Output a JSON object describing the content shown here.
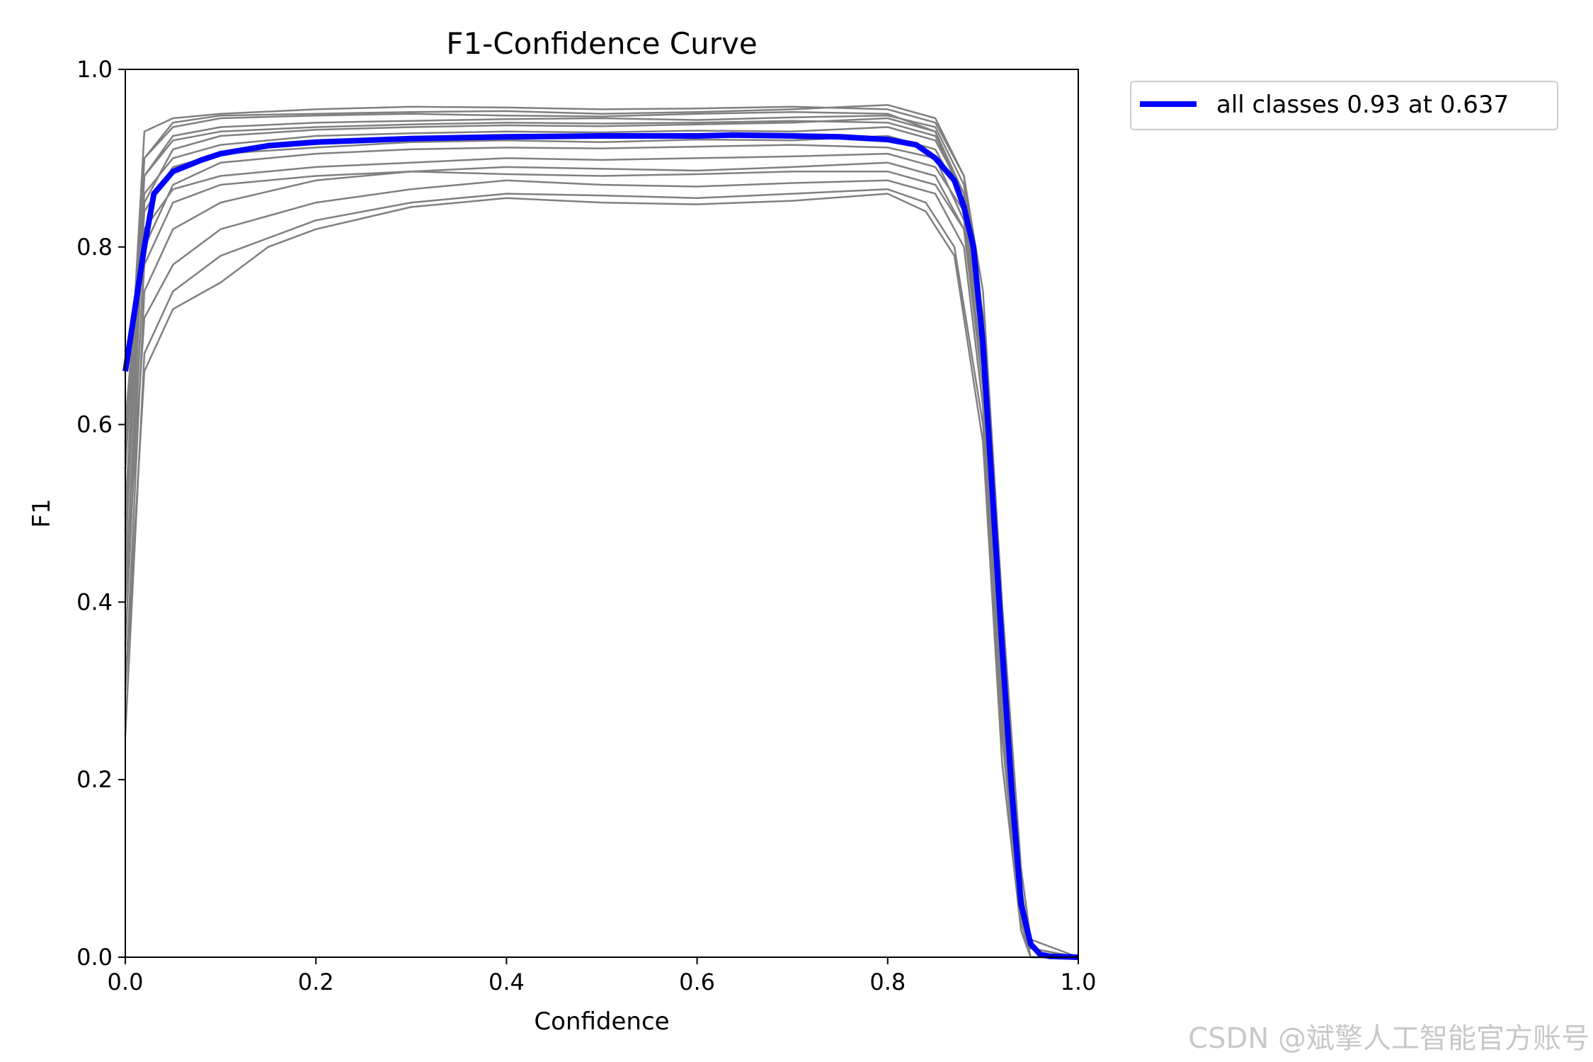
{
  "chart_data": {
    "type": "line",
    "title": "F1-Confidence Curve",
    "xlabel": "Confidence",
    "ylabel": "F1",
    "xlim": [
      0.0,
      1.0
    ],
    "ylim": [
      0.0,
      1.0
    ],
    "xticks": [
      "0.0",
      "0.2",
      "0.4",
      "0.6",
      "0.8",
      "1.0"
    ],
    "yticks": [
      "0.0",
      "0.2",
      "0.4",
      "0.6",
      "0.8",
      "1.0"
    ],
    "grid": false,
    "legend_position": "outside-top-right",
    "legend": [
      "all classes 0.93 at 0.637"
    ],
    "colors": {
      "class_curves": "#808080",
      "all_classes": "#0000ff",
      "axes": "#000000"
    },
    "series": [
      {
        "name": "all classes 0.93 at 0.637",
        "x": [
          0.0,
          0.01,
          0.02,
          0.03,
          0.05,
          0.08,
          0.1,
          0.15,
          0.2,
          0.3,
          0.4,
          0.5,
          0.6,
          0.637,
          0.7,
          0.75,
          0.8,
          0.83,
          0.85,
          0.87,
          0.88,
          0.89,
          0.9,
          0.91,
          0.92,
          0.93,
          0.94,
          0.95,
          0.96,
          0.97,
          1.0
        ],
        "y": [
          0.66,
          0.73,
          0.8,
          0.86,
          0.885,
          0.898,
          0.905,
          0.914,
          0.918,
          0.922,
          0.924,
          0.925,
          0.925,
          0.926,
          0.925,
          0.924,
          0.921,
          0.915,
          0.9,
          0.875,
          0.845,
          0.8,
          0.69,
          0.52,
          0.35,
          0.19,
          0.06,
          0.015,
          0.003,
          0.001,
          0.0
        ]
      }
    ],
    "class_series": [
      {
        "x": [
          0.0,
          0.02,
          0.05,
          0.1,
          0.2,
          0.3,
          0.4,
          0.5,
          0.6,
          0.7,
          0.8,
          0.85,
          0.88,
          0.9,
          0.92,
          0.94,
          0.95,
          1.0
        ],
        "y": [
          0.55,
          0.93,
          0.945,
          0.95,
          0.955,
          0.958,
          0.957,
          0.955,
          0.956,
          0.958,
          0.955,
          0.94,
          0.88,
          0.75,
          0.4,
          0.1,
          0.02,
          0.0
        ]
      },
      {
        "x": [
          0.0,
          0.02,
          0.05,
          0.1,
          0.2,
          0.3,
          0.4,
          0.5,
          0.6,
          0.7,
          0.8,
          0.85,
          0.88,
          0.9,
          0.92,
          0.94,
          0.95,
          1.0
        ],
        "y": [
          0.5,
          0.9,
          0.935,
          0.945,
          0.948,
          0.95,
          0.948,
          0.947,
          0.95,
          0.952,
          0.95,
          0.93,
          0.86,
          0.7,
          0.35,
          0.08,
          0.01,
          0.0
        ]
      },
      {
        "x": [
          0.0,
          0.02,
          0.05,
          0.1,
          0.2,
          0.3,
          0.4,
          0.5,
          0.6,
          0.7,
          0.8,
          0.85,
          0.88,
          0.9,
          0.92,
          0.94,
          0.95,
          1.0
        ],
        "y": [
          0.45,
          0.88,
          0.925,
          0.935,
          0.94,
          0.942,
          0.944,
          0.945,
          0.943,
          0.946,
          0.948,
          0.935,
          0.87,
          0.72,
          0.38,
          0.07,
          0.01,
          0.0
        ]
      },
      {
        "x": [
          0.0,
          0.02,
          0.05,
          0.1,
          0.2,
          0.3,
          0.4,
          0.5,
          0.6,
          0.7,
          0.8,
          0.85,
          0.88,
          0.9,
          0.92,
          0.94,
          0.95,
          1.0
        ],
        "y": [
          0.4,
          0.85,
          0.91,
          0.925,
          0.932,
          0.935,
          0.937,
          0.936,
          0.938,
          0.94,
          0.945,
          0.93,
          0.85,
          0.68,
          0.3,
          0.05,
          0.0,
          0.0
        ]
      },
      {
        "x": [
          0.0,
          0.02,
          0.05,
          0.1,
          0.2,
          0.3,
          0.4,
          0.5,
          0.6,
          0.7,
          0.8,
          0.85,
          0.88,
          0.9,
          0.92,
          0.94,
          0.95,
          1.0
        ],
        "y": [
          0.6,
          0.86,
          0.9,
          0.915,
          0.925,
          0.928,
          0.93,
          0.929,
          0.931,
          0.93,
          0.935,
          0.92,
          0.86,
          0.7,
          0.33,
          0.06,
          0.01,
          0.0
        ]
      },
      {
        "x": [
          0.0,
          0.02,
          0.05,
          0.1,
          0.2,
          0.3,
          0.4,
          0.5,
          0.6,
          0.7,
          0.8,
          0.85,
          0.88,
          0.9,
          0.92,
          0.94,
          0.95,
          1.0
        ],
        "y": [
          0.35,
          0.8,
          0.87,
          0.895,
          0.905,
          0.91,
          0.912,
          0.911,
          0.913,
          0.915,
          0.912,
          0.9,
          0.83,
          0.66,
          0.28,
          0.05,
          0.0,
          0.0
        ]
      },
      {
        "x": [
          0.0,
          0.02,
          0.05,
          0.1,
          0.2,
          0.3,
          0.4,
          0.5,
          0.6,
          0.7,
          0.8,
          0.85,
          0.88,
          0.9,
          0.92,
          0.94,
          0.95,
          1.0
        ],
        "y": [
          0.5,
          0.82,
          0.865,
          0.88,
          0.89,
          0.895,
          0.9,
          0.898,
          0.9,
          0.902,
          0.905,
          0.89,
          0.84,
          0.68,
          0.35,
          0.07,
          0.01,
          0.0
        ]
      },
      {
        "x": [
          0.0,
          0.02,
          0.05,
          0.1,
          0.2,
          0.3,
          0.4,
          0.5,
          0.6,
          0.7,
          0.8,
          0.85,
          0.88,
          0.9,
          0.92,
          0.94,
          0.95,
          1.0
        ],
        "y": [
          0.3,
          0.75,
          0.82,
          0.85,
          0.875,
          0.885,
          0.89,
          0.888,
          0.886,
          0.89,
          0.895,
          0.88,
          0.82,
          0.64,
          0.3,
          0.05,
          0.0,
          0.0
        ]
      },
      {
        "x": [
          0.0,
          0.02,
          0.05,
          0.1,
          0.2,
          0.3,
          0.4,
          0.5,
          0.6,
          0.7,
          0.8,
          0.85,
          0.88,
          0.9,
          0.92,
          0.94,
          0.95,
          1.0
        ],
        "y": [
          0.4,
          0.72,
          0.78,
          0.82,
          0.85,
          0.865,
          0.875,
          0.87,
          0.868,
          0.872,
          0.875,
          0.86,
          0.8,
          0.62,
          0.27,
          0.04,
          0.0,
          0.0
        ]
      },
      {
        "x": [
          0.0,
          0.02,
          0.05,
          0.1,
          0.2,
          0.3,
          0.4,
          0.5,
          0.6,
          0.7,
          0.8,
          0.84,
          0.87,
          0.9,
          0.92,
          0.94,
          0.95,
          1.0
        ],
        "y": [
          0.25,
          0.68,
          0.75,
          0.79,
          0.83,
          0.85,
          0.86,
          0.858,
          0.855,
          0.86,
          0.865,
          0.85,
          0.8,
          0.6,
          0.25,
          0.03,
          0.0,
          0.0
        ]
      },
      {
        "x": [
          0.0,
          0.02,
          0.05,
          0.1,
          0.15,
          0.2,
          0.3,
          0.4,
          0.5,
          0.6,
          0.7,
          0.8,
          0.84,
          0.87,
          0.9,
          0.92,
          0.94,
          0.95,
          1.0
        ],
        "y": [
          0.3,
          0.66,
          0.73,
          0.76,
          0.8,
          0.82,
          0.845,
          0.855,
          0.85,
          0.848,
          0.852,
          0.86,
          0.84,
          0.79,
          0.58,
          0.22,
          0.03,
          0.0,
          0.0
        ]
      },
      {
        "x": [
          0.0,
          0.02,
          0.05,
          0.1,
          0.2,
          0.3,
          0.4,
          0.5,
          0.6,
          0.7,
          0.8,
          0.85,
          0.88,
          0.9,
          0.92,
          0.94,
          0.95,
          1.0
        ],
        "y": [
          0.55,
          0.88,
          0.92,
          0.93,
          0.935,
          0.938,
          0.94,
          0.939,
          0.94,
          0.942,
          0.94,
          0.925,
          0.86,
          0.7,
          0.34,
          0.06,
          0.01,
          0.0
        ]
      },
      {
        "x": [
          0.0,
          0.02,
          0.05,
          0.1,
          0.2,
          0.3,
          0.4,
          0.5,
          0.6,
          0.7,
          0.8,
          0.85,
          0.88,
          0.9,
          0.92,
          0.94,
          0.95,
          1.0
        ],
        "y": [
          0.48,
          0.84,
          0.89,
          0.905,
          0.912,
          0.918,
          0.92,
          0.918,
          0.921,
          0.92,
          0.925,
          0.91,
          0.85,
          0.69,
          0.32,
          0.06,
          0.01,
          0.0
        ]
      },
      {
        "x": [
          0.0,
          0.02,
          0.05,
          0.1,
          0.2,
          0.3,
          0.4,
          0.5,
          0.6,
          0.7,
          0.8,
          0.85,
          0.88,
          0.9,
          0.92,
          0.94,
          0.95,
          1.0
        ],
        "y": [
          0.42,
          0.78,
          0.85,
          0.87,
          0.88,
          0.885,
          0.882,
          0.88,
          0.882,
          0.885,
          0.885,
          0.87,
          0.82,
          0.66,
          0.31,
          0.05,
          0.0,
          0.0
        ]
      },
      {
        "x": [
          0.0,
          0.02,
          0.05,
          0.1,
          0.2,
          0.3,
          0.4,
          0.5,
          0.6,
          0.7,
          0.8,
          0.85,
          0.88,
          0.9,
          0.92,
          0.94,
          0.95,
          1.0
        ],
        "y": [
          0.58,
          0.9,
          0.94,
          0.948,
          0.95,
          0.952,
          0.953,
          0.95,
          0.952,
          0.955,
          0.96,
          0.945,
          0.88,
          0.72,
          0.36,
          0.07,
          0.01,
          0.0
        ]
      }
    ]
  },
  "watermark": "CSDN @斌擎人工智能官方账号"
}
